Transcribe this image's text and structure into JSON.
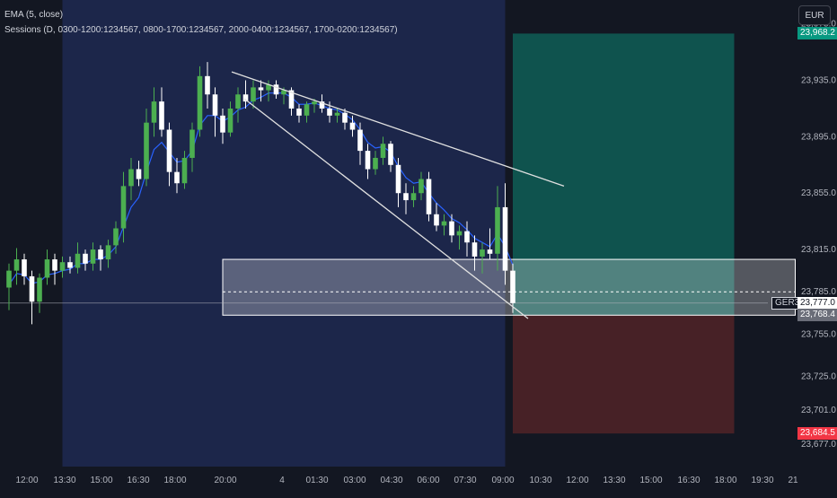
{
  "legend": {
    "ema": "EMA (5, close)",
    "sessions": "Sessions (D, 0300-1200:1234567, 0800-1700:1234567, 2000-0400:1234567, 1700-0200:1234567)"
  },
  "currency": "EUR",
  "ticker": "GER30",
  "price_labels": {
    "target": "23,968.2",
    "last": "23,777.0",
    "entry": "23,768.4",
    "stop": "23,684.5"
  },
  "colors": {
    "background": "#131722",
    "up": "#4caf50",
    "down": "#ffffff",
    "ema": "#2962ff",
    "session": "#1f2b55",
    "profit": "#0f5e56",
    "loss": "#4e2227",
    "target_tag": "#089981",
    "stop_tag": "#f23645",
    "entry_tag": "#6a6d78"
  },
  "chart_data": {
    "type": "candlestick",
    "y_ticks": [
      "23,975.0",
      "23,935.0",
      "23,895.0",
      "23,855.0",
      "23,815.0",
      "23,785.0",
      "23,755.0",
      "23,725.0",
      "23,701.0",
      "23,677.0"
    ],
    "x_ticks": [
      "12:00",
      "13:30",
      "15:00",
      "16:30",
      "18:00",
      "20:00",
      "4",
      "01:30",
      "03:00",
      "04:30",
      "06:00",
      "07:30",
      "09:00",
      "10:30",
      "12:00",
      "13:30",
      "15:00",
      "16:30",
      "18:00",
      "19:30",
      "21"
    ],
    "ylim": [
      23661,
      23992
    ],
    "candles": [
      [
        23788,
        23805,
        23772,
        23800
      ],
      [
        23800,
        23816,
        23790,
        23808
      ],
      [
        23808,
        23812,
        23790,
        23796
      ],
      [
        23796,
        23800,
        23762,
        23778
      ],
      [
        23778,
        23798,
        23770,
        23795
      ],
      [
        23795,
        23815,
        23790,
        23808
      ],
      [
        23808,
        23812,
        23790,
        23800
      ],
      [
        23800,
        23810,
        23795,
        23806
      ],
      [
        23806,
        23810,
        23798,
        23802
      ],
      [
        23802,
        23820,
        23798,
        23812
      ],
      [
        23812,
        23815,
        23800,
        23805
      ],
      [
        23805,
        23820,
        23800,
        23815
      ],
      [
        23815,
        23818,
        23800,
        23808
      ],
      [
        23808,
        23822,
        23802,
        23818
      ],
      [
        23818,
        23835,
        23812,
        23830
      ],
      [
        23830,
        23870,
        23820,
        23860
      ],
      [
        23860,
        23880,
        23850,
        23872
      ],
      [
        23872,
        23878,
        23860,
        23865
      ],
      [
        23865,
        23915,
        23860,
        23905
      ],
      [
        23905,
        23930,
        23895,
        23920
      ],
      [
        23920,
        23930,
        23895,
        23900
      ],
      [
        23900,
        23905,
        23860,
        23870
      ],
      [
        23870,
        23880,
        23855,
        23862
      ],
      [
        23862,
        23885,
        23858,
        23880
      ],
      [
        23880,
        23905,
        23870,
        23900
      ],
      [
        23900,
        23945,
        23895,
        23938
      ],
      [
        23938,
        23948,
        23915,
        23925
      ],
      [
        23925,
        23930,
        23895,
        23910
      ],
      [
        23910,
        23915,
        23890,
        23898
      ],
      [
        23898,
        23920,
        23895,
        23915
      ],
      [
        23915,
        23930,
        23905,
        23925
      ],
      [
        23925,
        23935,
        23915,
        23920
      ],
      [
        23920,
        23935,
        23915,
        23930
      ],
      [
        23930,
        23935,
        23920,
        23928
      ],
      [
        23928,
        23935,
        23920,
        23932
      ],
      [
        23932,
        23935,
        23922,
        23925
      ],
      [
        23925,
        23930,
        23918,
        23928
      ],
      [
        23928,
        23930,
        23910,
        23915
      ],
      [
        23915,
        23918,
        23905,
        23910
      ],
      [
        23910,
        23920,
        23905,
        23918
      ],
      [
        23918,
        23922,
        23912,
        23920
      ],
      [
        23920,
        23925,
        23912,
        23915
      ],
      [
        23915,
        23920,
        23905,
        23910
      ],
      [
        23910,
        23915,
        23905,
        23912
      ],
      [
        23912,
        23915,
        23900,
        23905
      ],
      [
        23905,
        23910,
        23895,
        23900
      ],
      [
        23900,
        23905,
        23875,
        23885
      ],
      [
        23885,
        23890,
        23865,
        23872
      ],
      [
        23872,
        23885,
        23868,
        23880
      ],
      [
        23880,
        23895,
        23875,
        23890
      ],
      [
        23890,
        23892,
        23870,
        23875
      ],
      [
        23875,
        23880,
        23845,
        23855
      ],
      [
        23855,
        23862,
        23840,
        23850
      ],
      [
        23850,
        23860,
        23845,
        23855
      ],
      [
        23855,
        23870,
        23850,
        23865
      ],
      [
        23865,
        23870,
        23835,
        23840
      ],
      [
        23840,
        23848,
        23828,
        23832
      ],
      [
        23832,
        23840,
        23825,
        23835
      ],
      [
        23835,
        23840,
        23820,
        23825
      ],
      [
        23825,
        23832,
        23815,
        23828
      ],
      [
        23828,
        23835,
        23810,
        23820
      ],
      [
        23820,
        23825,
        23800,
        23810
      ],
      [
        23810,
        23820,
        23798,
        23815
      ],
      [
        23815,
        23830,
        23808,
        23812
      ],
      [
        23812,
        23860,
        23800,
        23845
      ],
      [
        23845,
        23862,
        23790,
        23800
      ],
      [
        23800,
        23805,
        23770,
        23777
      ]
    ],
    "ema": [
      23790,
      23798,
      23797,
      23791,
      23792,
      23797,
      23798,
      23800,
      23801,
      23805,
      23805,
      23808,
      23808,
      23811,
      23817,
      23831,
      23845,
      23852,
      23870,
      23886,
      23891,
      23884,
      23877,
      23878,
      23885,
      23903,
      23910,
      23910,
      23906,
      23909,
      23914,
      23916,
      23921,
      23923,
      23926,
      23926,
      23926,
      23923,
      23918,
      23918,
      23919,
      23917,
      23915,
      23914,
      23911,
      23907,
      23900,
      23891,
      23887,
      23888,
      23884,
      23874,
      23866,
      23862,
      23863,
      23855,
      23848,
      23843,
      23837,
      23834,
      23829,
      23823,
      23820,
      23817,
      23826,
      23817,
      23804
    ],
    "trend_lines": [
      {
        "from": [
          0,
          23941
        ],
        "to": [
          90,
          23860
        ]
      },
      {
        "from": [
          3,
          23922
        ],
        "to": [
          70,
          23766
        ]
      }
    ],
    "zone": {
      "from_index": 28,
      "to_index": 103,
      "top": 23808,
      "bottom": 23768.4,
      "mid": 23785
    },
    "session_band": {
      "from_index": 7,
      "to_index": 65
    },
    "position": {
      "from_index": 66,
      "to_index": 95,
      "target": 23968.2,
      "entry": 23768.4,
      "stop": 23684.5
    },
    "last_price": 23777.0
  }
}
